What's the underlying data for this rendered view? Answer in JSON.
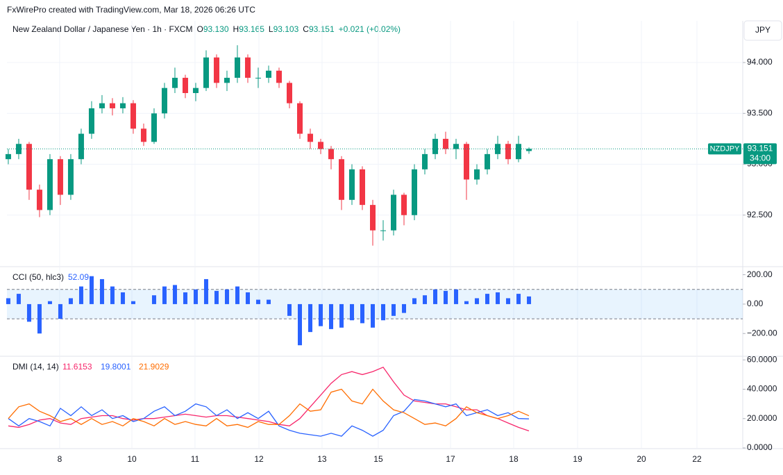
{
  "caption": "FxWirePro created with TradingView.com, Mar 18, 2026 06:26 UTC",
  "header": {
    "name": "New Zealand Dollar / Japanese Yen · 1h · FXCM",
    "o_label": "O",
    "open": "93.130",
    "h_label": "H",
    "high": "93.165",
    "l_label": "L",
    "low": "93.103",
    "c_label": "C",
    "close": "93.151",
    "change": "+0.021 (+0.02%)",
    "currency": "JPY"
  },
  "price_tag": {
    "symbol": "NZDJPY",
    "price": "93.151",
    "countdown": "34:00",
    "color": "#089981"
  },
  "x_axis": {
    "xlim": [
      -0.13,
      70.53
    ],
    "xticks": [
      {
        "value": 4.93,
        "label": "8"
      },
      {
        "value": 11.87,
        "label": "10"
      },
      {
        "value": 17.93,
        "label": "11"
      },
      {
        "value": 24.07,
        "label": "12"
      },
      {
        "value": 30.13,
        "label": "13"
      },
      {
        "value": 35.53,
        "label": "15"
      },
      {
        "value": 42.47,
        "label": "17"
      },
      {
        "value": 48.53,
        "label": "18"
      },
      {
        "value": 54.67,
        "label": "19"
      },
      {
        "value": 60.8,
        "label": "20"
      },
      {
        "value": 66.13,
        "label": "22"
      }
    ]
  },
  "chart_data": [
    {
      "type": "candlestick",
      "up_color": "#089981",
      "down_color": "#f23645",
      "grid": true,
      "ylim": [
        92.0,
        94.41
      ],
      "yticks": [
        {
          "value": 94,
          "label": "94.000"
        },
        {
          "value": 93.5,
          "label": "93.500"
        },
        {
          "value": 93,
          "label": "93.000"
        },
        {
          "value": 92.5,
          "label": "92.500"
        }
      ],
      "open": [
        93.05,
        93.1,
        93.2,
        92.75,
        92.55,
        93.05,
        92.7,
        93.05,
        93.3,
        93.55,
        93.6,
        93.55,
        93.6,
        93.35,
        93.22,
        93.5,
        93.75,
        93.85,
        93.7,
        93.75,
        94.05,
        93.8,
        93.85,
        94.05,
        93.85,
        93.85,
        93.92,
        93.8,
        93.6,
        93.3,
        93.22,
        93.15,
        93.05,
        92.65,
        92.95,
        92.6,
        92.35,
        92.35,
        92.7,
        92.5,
        92.95,
        93.1,
        93.25,
        93.15,
        93.2,
        92.85,
        92.95,
        93.1,
        93.2,
        93.05,
        93.13
      ],
      "high": [
        93.15,
        93.25,
        93.22,
        92.8,
        93.1,
        93.08,
        93.1,
        93.35,
        93.62,
        93.68,
        93.65,
        93.66,
        93.63,
        93.4,
        93.55,
        93.8,
        93.95,
        93.88,
        93.8,
        94.12,
        94.08,
        93.92,
        94.17,
        94.08,
        93.95,
        93.97,
        93.95,
        93.82,
        93.62,
        93.35,
        93.25,
        93.18,
        93.08,
        93.0,
        92.98,
        92.65,
        92.45,
        92.75,
        92.72,
        93.0,
        93.15,
        93.3,
        93.32,
        93.25,
        93.22,
        93.0,
        93.15,
        93.28,
        93.23,
        93.28,
        93.165
      ],
      "low": [
        93.0,
        93.05,
        92.65,
        92.48,
        92.5,
        92.6,
        92.65,
        93.0,
        93.25,
        93.5,
        93.48,
        93.5,
        93.3,
        93.18,
        93.2,
        93.45,
        93.7,
        93.65,
        93.62,
        93.72,
        93.75,
        93.72,
        93.8,
        93.8,
        93.75,
        93.8,
        93.75,
        93.55,
        93.25,
        93.15,
        93.1,
        92.95,
        92.55,
        92.6,
        92.55,
        92.2,
        92.25,
        92.3,
        92.4,
        92.45,
        92.9,
        93.05,
        93.1,
        93.05,
        92.65,
        92.8,
        92.9,
        93.05,
        93.0,
        93.02,
        93.103
      ],
      "close": [
        93.1,
        93.2,
        92.75,
        92.55,
        93.05,
        92.7,
        93.05,
        93.3,
        93.55,
        93.6,
        93.55,
        93.6,
        93.35,
        93.22,
        93.5,
        93.75,
        93.85,
        93.7,
        93.75,
        94.05,
        93.8,
        93.85,
        94.05,
        93.85,
        93.85,
        93.92,
        93.8,
        93.6,
        93.3,
        93.22,
        93.15,
        93.05,
        92.65,
        92.95,
        92.6,
        92.35,
        92.35,
        92.7,
        92.5,
        92.95,
        93.1,
        93.25,
        93.15,
        93.2,
        92.85,
        92.95,
        93.1,
        93.2,
        93.05,
        93.2,
        93.151
      ]
    },
    {
      "type": "bar",
      "title": "CCI (50, hlc3)",
      "color": "#2962ff",
      "band": [
        -100,
        100
      ],
      "band_color": "#2196f3",
      "grid": false,
      "ylim": [
        -350,
        250
      ],
      "yticks": [
        {
          "value": 200,
          "label": "200.00"
        },
        {
          "value": 0,
          "label": "0.00"
        },
        {
          "value": -200,
          "label": "−200.00"
        }
      ],
      "values": [
        40,
        70,
        -120,
        -200,
        20,
        -100,
        40,
        120,
        190,
        170,
        120,
        80,
        20,
        0,
        60,
        120,
        130,
        80,
        100,
        170,
        90,
        100,
        120,
        80,
        30,
        30,
        0,
        -80,
        -280,
        -190,
        -150,
        -170,
        -160,
        -110,
        -130,
        -160,
        -110,
        -80,
        -60,
        40,
        60,
        100,
        90,
        100,
        20,
        40,
        70,
        80,
        40,
        70,
        52.09
      ]
    },
    {
      "type": "line",
      "title": "DMI (14, 14)",
      "grid": false,
      "ylim": [
        0,
        62
      ],
      "yticks": [
        {
          "value": 60,
          "label": "60.0000"
        },
        {
          "value": 40,
          "label": "40.0000"
        },
        {
          "value": 20,
          "label": "20.0000"
        },
        {
          "value": 0,
          "label": "0.0000"
        }
      ],
      "series": [
        {
          "color": "#f7266b",
          "values": [
            15,
            14,
            16,
            19,
            20,
            17,
            16,
            20,
            21,
            22,
            22,
            20,
            19,
            20,
            20,
            21,
            22,
            23,
            22,
            21,
            22,
            22,
            21,
            20,
            19,
            18,
            16,
            15,
            20,
            28,
            36,
            44,
            50,
            52,
            50,
            52,
            55,
            45,
            36,
            32,
            31,
            30,
            30,
            28,
            26,
            26,
            22,
            20,
            17,
            14,
            11.6153
          ]
        },
        {
          "color": "#2962ff",
          "values": [
            20,
            15,
            20,
            18,
            15,
            27,
            22,
            28,
            22,
            26,
            20,
            22,
            18,
            20,
            25,
            28,
            22,
            25,
            30,
            28,
            22,
            26,
            20,
            24,
            20,
            25,
            15,
            12,
            10,
            9,
            8,
            10,
            8,
            15,
            12,
            8,
            12,
            22,
            25,
            33,
            32,
            30,
            28,
            30,
            22,
            24,
            26,
            22,
            24,
            20,
            19.8001
          ]
        },
        {
          "color": "#ff6d00",
          "values": [
            20,
            28,
            30,
            25,
            22,
            18,
            20,
            16,
            20,
            16,
            18,
            15,
            20,
            18,
            15,
            20,
            16,
            18,
            16,
            15,
            20,
            15,
            16,
            14,
            18,
            16,
            16,
            22,
            30,
            25,
            26,
            38,
            40,
            32,
            30,
            40,
            32,
            26,
            24,
            20,
            16,
            17,
            15,
            20,
            28,
            24,
            22,
            20,
            22,
            25,
            21.9029
          ]
        }
      ]
    }
  ]
}
